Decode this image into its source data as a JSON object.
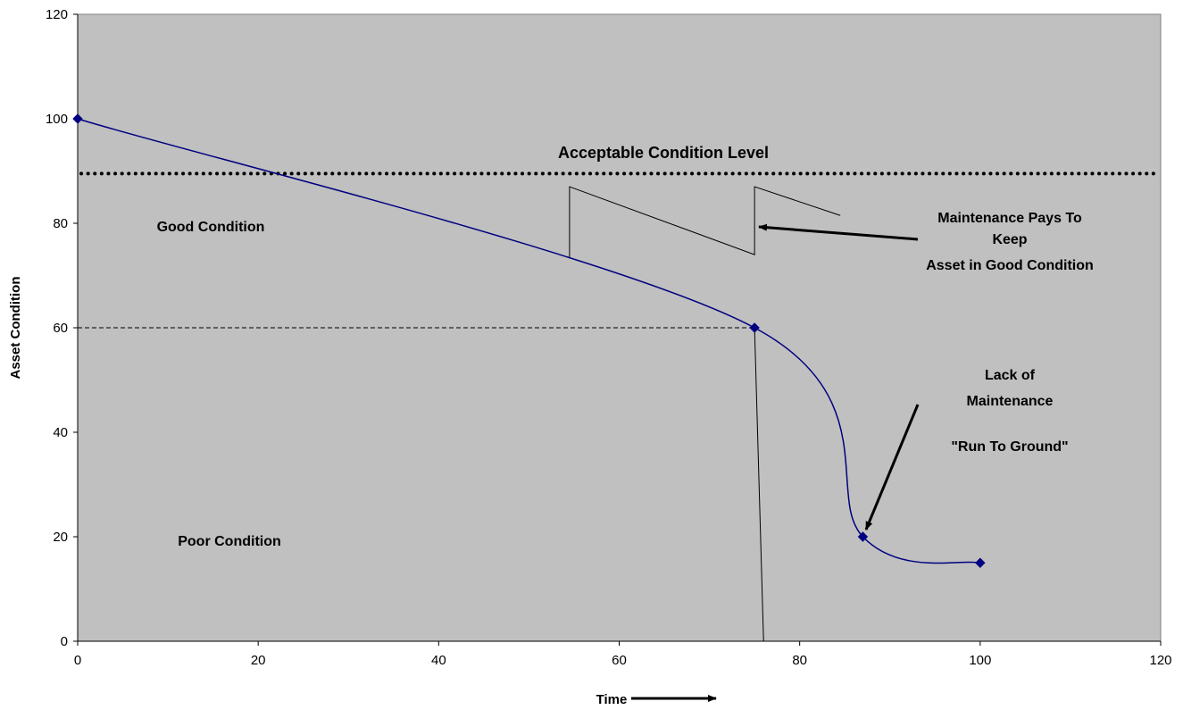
{
  "chart_data": {
    "type": "line",
    "title": "",
    "xlabel": "Time",
    "ylabel": "Asset Condition",
    "xlim": [
      0,
      120
    ],
    "ylim": [
      0,
      120
    ],
    "x_ticks": [
      0,
      20,
      40,
      60,
      80,
      100,
      120
    ],
    "y_ticks": [
      0,
      20,
      40,
      60,
      80,
      100,
      120
    ],
    "grid": false,
    "plot_background": "#c0c0c0",
    "series": [
      {
        "color": "#000080",
        "smooth": true,
        "points": [
          [
            0,
            100
          ],
          [
            75,
            60
          ],
          [
            87,
            20
          ],
          [
            100,
            15
          ]
        ]
      }
    ],
    "acceptable_level": {
      "y": 89.5,
      "label": "Acceptable Condition Level"
    },
    "reference_line": {
      "y": 60,
      "x_end": 75
    },
    "drop_line": {
      "from": [
        75,
        60
      ],
      "to": [
        76,
        0
      ]
    },
    "maintenance_sawtooth": [
      [
        54.5,
        73.5
      ],
      [
        54.5,
        87
      ],
      [
        75,
        74
      ],
      [
        75,
        87
      ],
      [
        84.5,
        81.5
      ]
    ],
    "annotations": {
      "good": "Good Condition",
      "poor": "Poor Condition",
      "maint_line1": "Maintenance Pays To",
      "maint_line2": "Keep",
      "maint_line3": "Asset in Good Condition",
      "lack_line1": "Lack of",
      "lack_line2": "Maintenance",
      "run_to_ground": "\"Run To Ground\""
    }
  }
}
